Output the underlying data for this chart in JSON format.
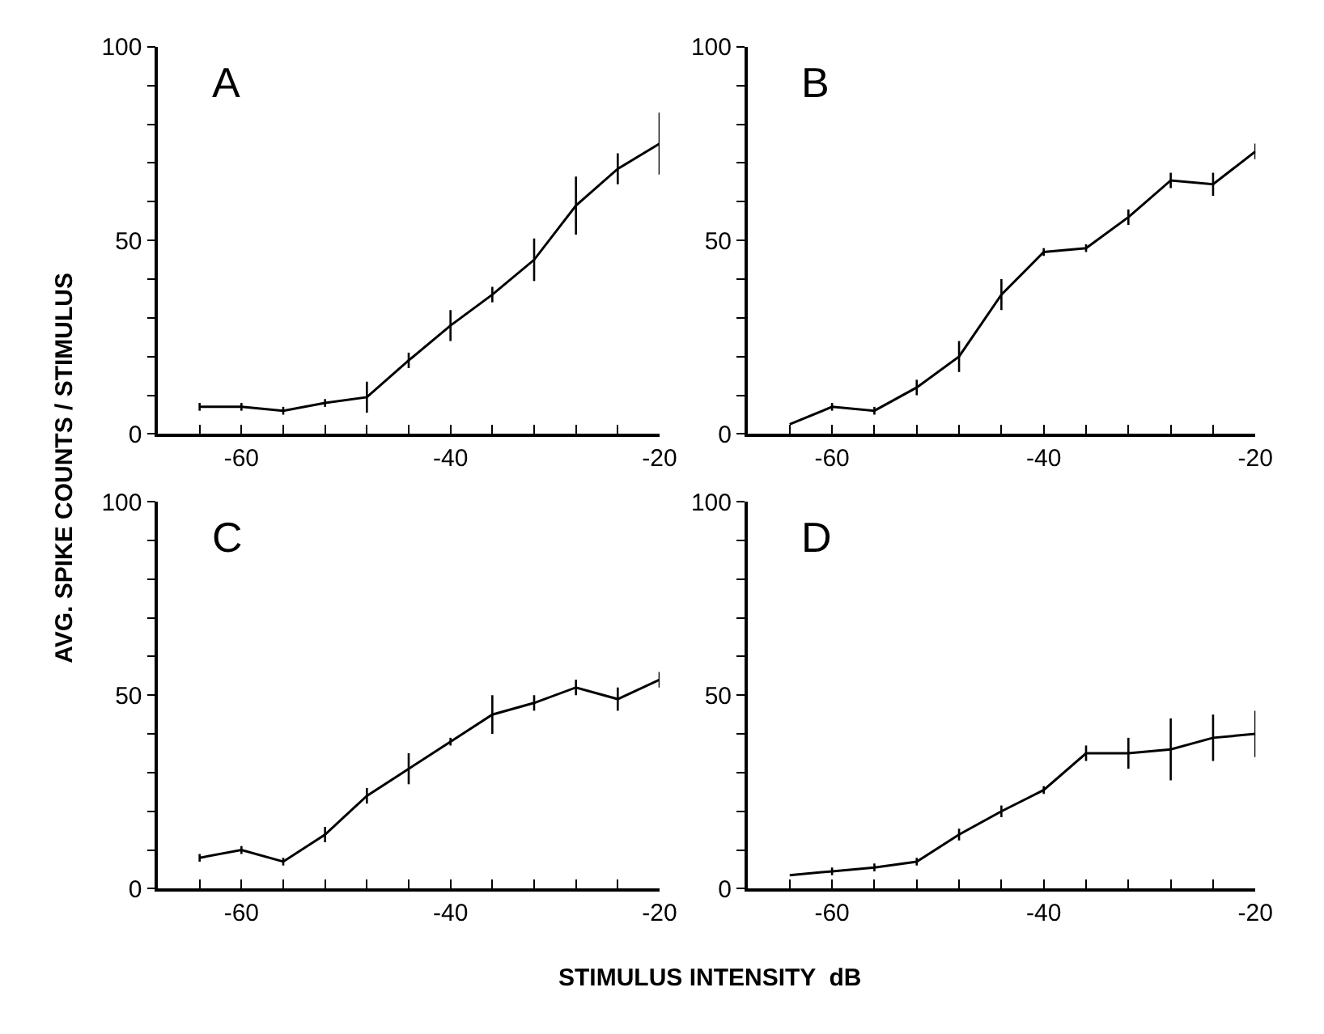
{
  "chart_data": [
    {
      "type": "line",
      "annotations": [
        "A"
      ],
      "ylabel": "AVG. SPIKE COUNTS / STIMULUS",
      "x": [
        -64,
        -60,
        -56,
        -52,
        -48,
        -44,
        -40,
        -36,
        -32,
        -28,
        -24,
        -20
      ],
      "series": [
        {
          "color": "#000000",
          "values": [
            7,
            7,
            6,
            8,
            9.5,
            19,
            28,
            36,
            45,
            59,
            68.5,
            75
          ],
          "errors": [
            1,
            1,
            1,
            1,
            4,
            2,
            4,
            2,
            5.5,
            7.5,
            4,
            8
          ]
        }
      ],
      "xlim": [
        -68,
        -20
      ],
      "ylim": [
        0,
        100
      ],
      "xticks": [
        {
          "value": -64,
          "label": null
        },
        -60,
        {
          "value": -56,
          "label": null
        },
        {
          "value": -52,
          "label": null
        },
        {
          "value": -48,
          "label": null
        },
        {
          "value": -44,
          "label": null
        },
        -40,
        {
          "value": -36,
          "label": null
        },
        {
          "value": -32,
          "label": null
        },
        {
          "value": -28,
          "label": null
        },
        {
          "value": -24,
          "label": null
        },
        -20
      ],
      "yticks": [
        0,
        {
          "value": 10,
          "label": null
        },
        {
          "value": 20,
          "label": null
        },
        {
          "value": 30,
          "label": null
        },
        {
          "value": 40,
          "label": null
        },
        50,
        {
          "value": 60,
          "label": null
        },
        {
          "value": 70,
          "label": null
        },
        {
          "value": 80,
          "label": null
        },
        {
          "value": 90,
          "label": null
        },
        100
      ]
    },
    {
      "type": "line",
      "annotations": [
        "B"
      ],
      "x": [
        -64,
        -60,
        -56,
        -52,
        -48,
        -44,
        -40,
        -36,
        -32,
        -28,
        -24,
        -20
      ],
      "series": [
        {
          "color": "#000000",
          "values": [
            2.5,
            7,
            6,
            12,
            20,
            36,
            47,
            48,
            56,
            65.5,
            64.5,
            73
          ],
          "errors": [
            null,
            1,
            1,
            2,
            4,
            4,
            1,
            1,
            2,
            2,
            3,
            2
          ]
        }
      ],
      "xlim": [
        -68,
        -20
      ],
      "ylim": [
        0,
        100
      ],
      "xticks": [
        {
          "value": -64,
          "label": null
        },
        -60,
        {
          "value": -56,
          "label": null
        },
        {
          "value": -52,
          "label": null
        },
        {
          "value": -48,
          "label": null
        },
        {
          "value": -44,
          "label": null
        },
        -40,
        {
          "value": -36,
          "label": null
        },
        {
          "value": -32,
          "label": null
        },
        {
          "value": -28,
          "label": null
        },
        {
          "value": -24,
          "label": null
        },
        -20
      ],
      "yticks": [
        0,
        {
          "value": 10,
          "label": null
        },
        {
          "value": 20,
          "label": null
        },
        {
          "value": 30,
          "label": null
        },
        {
          "value": 40,
          "label": null
        },
        50,
        {
          "value": 60,
          "label": null
        },
        {
          "value": 70,
          "label": null
        },
        {
          "value": 80,
          "label": null
        },
        {
          "value": 90,
          "label": null
        },
        100
      ]
    },
    {
      "type": "line",
      "annotations": [
        "C"
      ],
      "xlabel": "STIMULUS INTENSITY  dB",
      "x": [
        -64,
        -60,
        -56,
        -52,
        -48,
        -44,
        -40,
        -36,
        -32,
        -28,
        -24,
        -20
      ],
      "series": [
        {
          "color": "#000000",
          "values": [
            8,
            10,
            7,
            14,
            24,
            31,
            38,
            45,
            48,
            52,
            49,
            54
          ],
          "errors": [
            1,
            1,
            1,
            2,
            2,
            4,
            1,
            5,
            2,
            2,
            3,
            2
          ]
        }
      ],
      "xlim": [
        -68,
        -20
      ],
      "ylim": [
        0,
        100
      ],
      "xticks": [
        {
          "value": -64,
          "label": null
        },
        -60,
        {
          "value": -56,
          "label": null
        },
        {
          "value": -52,
          "label": null
        },
        {
          "value": -48,
          "label": null
        },
        {
          "value": -44,
          "label": null
        },
        -40,
        {
          "value": -36,
          "label": null
        },
        {
          "value": -32,
          "label": null
        },
        {
          "value": -28,
          "label": null
        },
        {
          "value": -24,
          "label": null
        },
        -20
      ],
      "yticks": [
        0,
        {
          "value": 10,
          "label": null
        },
        {
          "value": 20,
          "label": null
        },
        {
          "value": 30,
          "label": null
        },
        {
          "value": 40,
          "label": null
        },
        50,
        {
          "value": 60,
          "label": null
        },
        {
          "value": 70,
          "label": null
        },
        {
          "value": 80,
          "label": null
        },
        {
          "value": 90,
          "label": null
        },
        100
      ]
    },
    {
      "type": "line",
      "annotations": [
        "D"
      ],
      "x": [
        -64,
        -60,
        -56,
        -52,
        -48,
        -44,
        -40,
        -36,
        -32,
        -28,
        -24,
        -20
      ],
      "series": [
        {
          "color": "#000000",
          "values": [
            3.5,
            4.5,
            5.5,
            7,
            14,
            20,
            25.5,
            35,
            35,
            36,
            39,
            40
          ],
          "errors": [
            null,
            1,
            1,
            1,
            1.5,
            1.5,
            1,
            2,
            4,
            8,
            6,
            6
          ]
        }
      ],
      "xlim": [
        -68,
        -20
      ],
      "ylim": [
        0,
        100
      ],
      "xticks": [
        {
          "value": -64,
          "label": null
        },
        -60,
        {
          "value": -56,
          "label": null
        },
        {
          "value": -52,
          "label": null
        },
        {
          "value": -48,
          "label": null
        },
        {
          "value": -44,
          "label": null
        },
        -40,
        {
          "value": -36,
          "label": null
        },
        {
          "value": -32,
          "label": null
        },
        {
          "value": -28,
          "label": null
        },
        {
          "value": -24,
          "label": null
        },
        -20
      ],
      "yticks": [
        0,
        {
          "value": 10,
          "label": null
        },
        {
          "value": 20,
          "label": null
        },
        {
          "value": 30,
          "label": null
        },
        {
          "value": 40,
          "label": null
        },
        50,
        {
          "value": 60,
          "label": null
        },
        {
          "value": 70,
          "label": null
        },
        {
          "value": 80,
          "label": null
        },
        {
          "value": 90,
          "label": null
        },
        100
      ]
    }
  ]
}
